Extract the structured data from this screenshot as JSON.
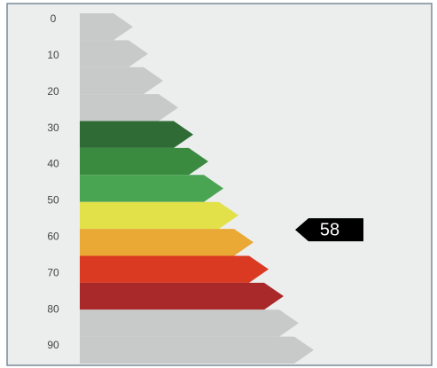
{
  "chart_data": {
    "type": "rating-scale",
    "yticks": [
      0,
      10,
      20,
      30,
      40,
      50,
      60,
      70,
      80,
      90
    ],
    "ylim": [
      0,
      90
    ],
    "band_colors": [
      "#c8c9c9",
      "#c8c9c9",
      "#c8c9c9",
      "#c8c9c9",
      "#2f6b34",
      "#3a8a3f",
      "#4aa553",
      "#e2e14a",
      "#eaa834",
      "#db3a22",
      "#a9282a",
      "#c8c9c9",
      "#c8c9c9"
    ],
    "marker": {
      "value": 58,
      "color": "#000000"
    }
  }
}
